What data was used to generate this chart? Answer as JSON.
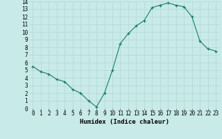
{
  "x": [
    0,
    1,
    2,
    3,
    4,
    5,
    6,
    7,
    8,
    9,
    10,
    11,
    12,
    13,
    14,
    15,
    16,
    17,
    18,
    19,
    20,
    21,
    22,
    23
  ],
  "y": [
    5.5,
    4.8,
    4.5,
    3.8,
    3.5,
    2.5,
    2.0,
    1.0,
    0.2,
    2.0,
    5.0,
    8.5,
    9.8,
    10.8,
    11.5,
    13.2,
    13.5,
    13.8,
    13.5,
    13.3,
    12.0,
    8.8,
    7.8,
    7.5
  ],
  "line_color": "#1a7a6a",
  "marker": "+",
  "marker_size": 3,
  "bg_color": "#c8eae8",
  "grid_color": "#b0d8d4",
  "xlabel": "Humidex (Indice chaleur)",
  "xlim": [
    -0.5,
    23.5
  ],
  "ylim": [
    0,
    14
  ],
  "ytick_vals": [
    0,
    1,
    2,
    3,
    4,
    5,
    6,
    7,
    8,
    9,
    10,
    11,
    12,
    13,
    14
  ],
  "label_fontsize": 6.5,
  "tick_fontsize": 5.5
}
